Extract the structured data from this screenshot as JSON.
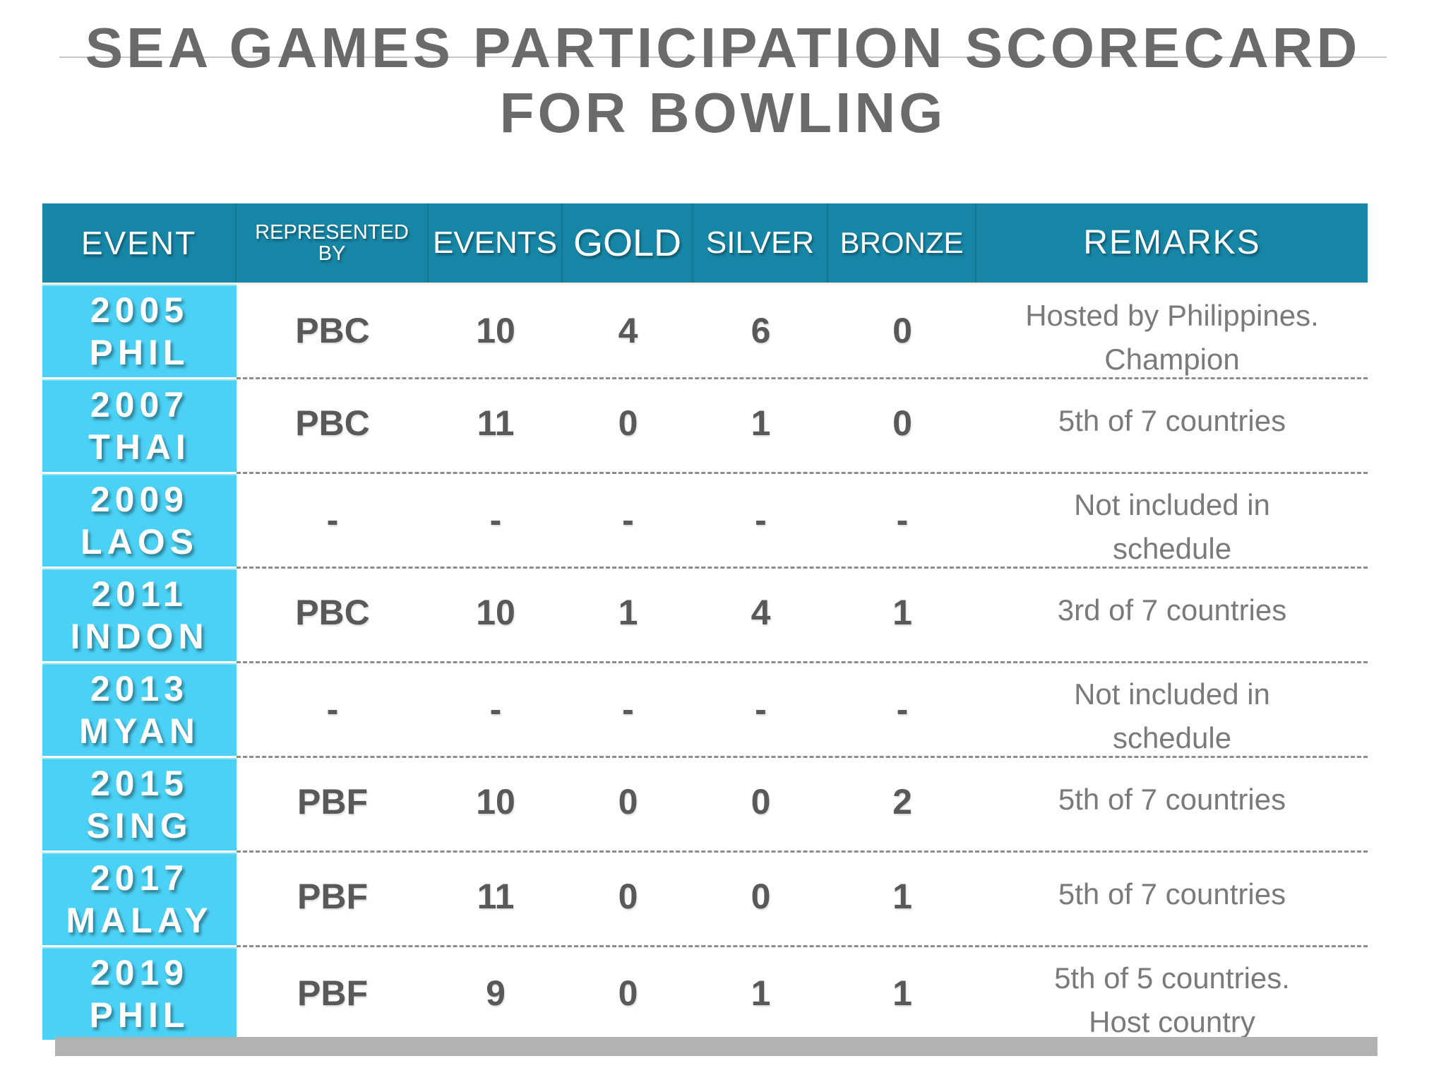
{
  "title": {
    "line1": "SEA GAMES PARTICIPATION SCORECARD",
    "line2": "FOR BOWLING"
  },
  "table": {
    "columns": [
      "EVENT",
      "REPRESENTED BY",
      "EVENTS",
      "GOLD",
      "SILVER",
      "BRONZE",
      "REMARKS"
    ],
    "rows": [
      {
        "event_year": "2005",
        "event_host": "PHIL",
        "represented_by": "PBC",
        "events": "10",
        "gold": "4",
        "silver": "6",
        "bronze": "0",
        "remarks": "Hosted by Philippines.\nChampion"
      },
      {
        "event_year": "2007",
        "event_host": "THAI",
        "represented_by": "PBC",
        "events": "11",
        "gold": "0",
        "silver": "1",
        "bronze": "0",
        "remarks": "5th of 7 countries"
      },
      {
        "event_year": "2009",
        "event_host": "LAOS",
        "represented_by": "-",
        "events": "-",
        "gold": "-",
        "silver": "-",
        "bronze": "-",
        "remarks": "Not included in\nschedule"
      },
      {
        "event_year": "2011",
        "event_host": "INDON",
        "represented_by": "PBC",
        "events": "10",
        "gold": "1",
        "silver": "4",
        "bronze": "1",
        "remarks": "3rd of 7 countries"
      },
      {
        "event_year": "2013",
        "event_host": "MYAN",
        "represented_by": "-",
        "events": "-",
        "gold": "-",
        "silver": "-",
        "bronze": "-",
        "remarks": "Not included in\nschedule"
      },
      {
        "event_year": "2015",
        "event_host": "SING",
        "represented_by": "PBF",
        "events": "10",
        "gold": "0",
        "silver": "0",
        "bronze": "2",
        "remarks": "5th of 7 countries"
      },
      {
        "event_year": "2017",
        "event_host": "MALAY",
        "represented_by": "PBF",
        "events": "11",
        "gold": "0",
        "silver": "0",
        "bronze": "1",
        "remarks": "5th of 7 countries"
      },
      {
        "event_year": "2019",
        "event_host": "PHIL",
        "represented_by": "PBF",
        "events": "9",
        "gold": "0",
        "silver": "1",
        "bronze": "1",
        "remarks": "5th of 5 countries.\nHost country"
      }
    ]
  },
  "chart_data": {
    "type": "table",
    "title": "SEA GAMES PARTICIPATION SCORECARD FOR BOWLING",
    "headers": [
      "EVENT",
      "REPRESENTED BY",
      "EVENTS",
      "GOLD",
      "SILVER",
      "BRONZE",
      "REMARKS"
    ],
    "rows": [
      [
        "2005 PHIL",
        "PBC",
        "10",
        "4",
        "6",
        "0",
        "Hosted by Philippines. Champion"
      ],
      [
        "2007 THAI",
        "PBC",
        "11",
        "0",
        "1",
        "0",
        "5th of 7 countries"
      ],
      [
        "2009 LAOS",
        "-",
        "-",
        "-",
        "-",
        "-",
        "Not included in schedule"
      ],
      [
        "2011 INDON",
        "PBC",
        "10",
        "1",
        "4",
        "1",
        "3rd of 7 countries"
      ],
      [
        "2013 MYAN",
        "-",
        "-",
        "-",
        "-",
        "-",
        "Not included in schedule"
      ],
      [
        "2015 SING",
        "PBF",
        "10",
        "0",
        "0",
        "2",
        "5th of 7 countries"
      ],
      [
        "2017 MALAY",
        "PBF",
        "11",
        "0",
        "0",
        "1",
        "5th of 7 countries"
      ],
      [
        "2019 PHIL",
        "PBF",
        "9",
        "0",
        "1",
        "1",
        "5th of 5 countries. Host country"
      ]
    ]
  },
  "colors": {
    "header-bg": "#1786A6",
    "event-bg": "#4BD1F5",
    "value-text": "#595959",
    "remarks-text": "#7a7a7a",
    "title-text": "#6a6a6a",
    "dotted-line": "#8c8c8c",
    "shadow-bar": "#b2b2b2",
    "title-rule": "#c6c6c6"
  }
}
